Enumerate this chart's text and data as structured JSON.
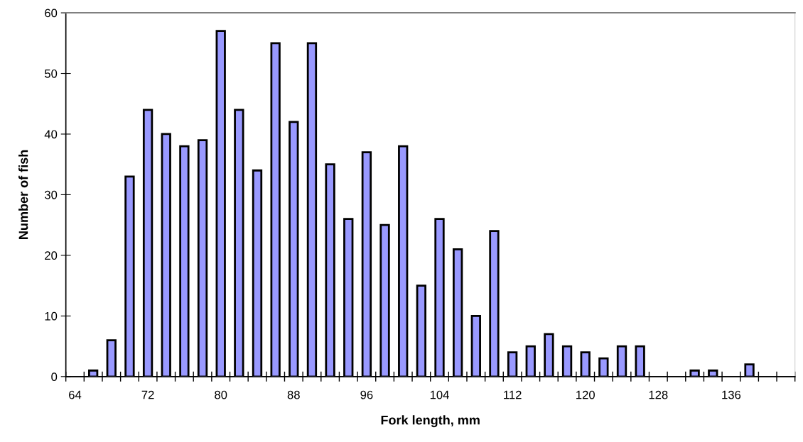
{
  "chart_data": {
    "type": "bar",
    "xlabel": "Fork length, mm",
    "ylabel": "Number of fish",
    "categories": [
      "64",
      null,
      null,
      null,
      "72",
      null,
      null,
      null,
      "80",
      null,
      null,
      null,
      "88",
      null,
      null,
      null,
      "96",
      null,
      null,
      null,
      "104",
      null,
      null,
      null,
      "112",
      null,
      null,
      null,
      "120",
      null,
      null,
      null,
      "128",
      null,
      null,
      null,
      "136",
      null,
      null,
      null
    ],
    "values": [
      null,
      1,
      6,
      33,
      44,
      40,
      38,
      39,
      57,
      44,
      34,
      55,
      42,
      55,
      35,
      26,
      37,
      25,
      38,
      15,
      26,
      21,
      10,
      24,
      4,
      5,
      7,
      5,
      4,
      3,
      5,
      5,
      null,
      null,
      1,
      1,
      null,
      2,
      null,
      null
    ],
    "color": "#9999ff",
    "ylim": [
      0,
      60
    ],
    "yticks": [
      0,
      10,
      20,
      30,
      40,
      50,
      60
    ],
    "grid": false
  }
}
